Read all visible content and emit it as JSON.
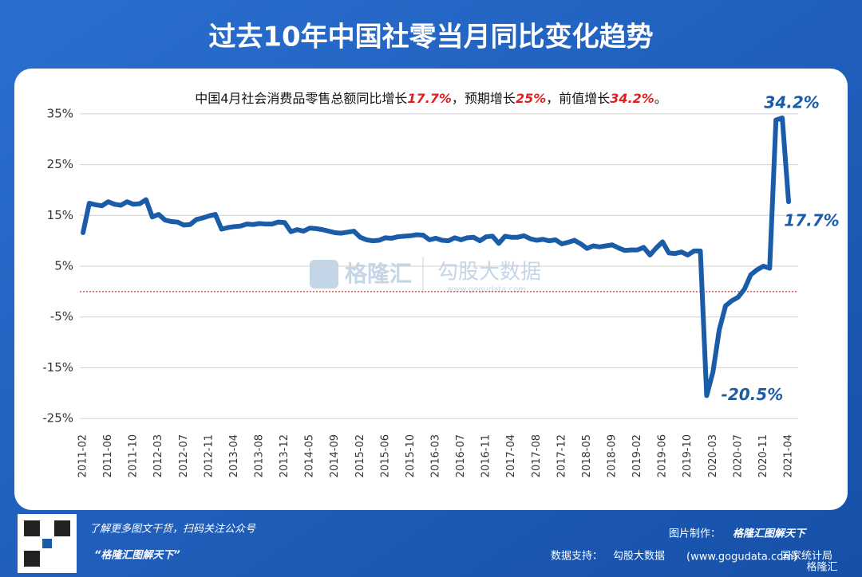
{
  "chart_data": {
    "type": "line",
    "title": "过去10年中国社零当月同比变化趋势",
    "subtitle_parts": [
      "中国4月社会消费品零售总额同比增长",
      "17.7%",
      "，预期增长",
      "25%",
      "，前值增长",
      "34.2%",
      "。"
    ],
    "categories": [
      "2011-02",
      null,
      null,
      null,
      "2011-06",
      null,
      null,
      null,
      "2011-10",
      null,
      null,
      null,
      "2012-03",
      null,
      null,
      null,
      "2012-07",
      null,
      null,
      null,
      "2012-11",
      null,
      null,
      null,
      "2013-04",
      null,
      null,
      null,
      "2013-08",
      null,
      null,
      null,
      "2013-12",
      null,
      null,
      null,
      "2014-05",
      null,
      null,
      null,
      "2014-09",
      null,
      null,
      null,
      "2015-02",
      null,
      null,
      null,
      "2015-06",
      null,
      null,
      null,
      "2015-10",
      null,
      null,
      null,
      "2016-03",
      null,
      null,
      null,
      "2016-07",
      null,
      null,
      null,
      "2016-11",
      null,
      null,
      null,
      "2017-04",
      null,
      null,
      null,
      "2017-08",
      null,
      null,
      null,
      "2017-12",
      null,
      null,
      null,
      "2018-05",
      null,
      null,
      null,
      "2018-09",
      null,
      null,
      null,
      "2019-02",
      null,
      null,
      null,
      "2019-06",
      null,
      null,
      null,
      "2019-10",
      null,
      null,
      null,
      "2020-03",
      null,
      null,
      null,
      "2020-07",
      null,
      null,
      null,
      "2020-11",
      null,
      null,
      null,
      "2021-04"
    ],
    "series": [
      {
        "color": "#1a5ca8",
        "values": [
          11.6,
          17.4,
          17.1,
          16.9,
          17.7,
          17.2,
          17.0,
          17.7,
          17.2,
          17.3,
          18.1,
          14.7,
          15.2,
          14.1,
          13.8,
          13.7,
          13.1,
          13.2,
          14.2,
          14.5,
          14.9,
          15.2,
          12.3,
          12.6,
          12.8,
          12.9,
          13.3,
          13.2,
          13.4,
          13.3,
          13.3,
          13.7,
          13.6,
          11.8,
          12.2,
          11.9,
          12.5,
          12.4,
          12.2,
          11.9,
          11.6,
          11.5,
          11.7,
          11.9,
          10.7,
          10.2,
          10.0,
          10.1,
          10.6,
          10.5,
          10.8,
          10.9,
          11.0,
          11.2,
          11.1,
          10.2,
          10.5,
          10.1,
          10.0,
          10.6,
          10.2,
          10.6,
          10.7,
          10.0,
          10.8,
          10.9,
          9.5,
          10.9,
          10.7,
          10.7,
          11.0,
          10.4,
          10.1,
          10.3,
          10.0,
          10.2,
          9.4,
          9.7,
          10.1,
          9.4,
          8.5,
          9.0,
          8.8,
          9.0,
          9.2,
          8.6,
          8.1,
          8.2,
          8.2,
          8.7,
          7.2,
          8.6,
          9.8,
          7.6,
          7.5,
          7.8,
          7.2,
          8.0,
          8.0,
          -20.5,
          -15.8,
          -7.5,
          -2.8,
          -1.8,
          -1.1,
          0.5,
          3.3,
          4.3,
          5.0,
          4.6,
          33.8,
          34.2,
          17.7
        ],
        "value_labels": [
          null,
          null,
          null,
          null,
          null,
          null,
          null,
          null,
          null,
          null,
          null,
          null,
          null,
          null,
          null,
          null,
          null,
          null,
          null,
          null,
          null,
          null,
          null,
          null,
          null,
          null,
          null,
          null,
          null,
          null,
          null,
          null,
          null,
          null,
          null,
          null,
          null,
          null,
          null,
          null,
          null,
          null,
          null,
          null,
          null,
          null,
          null,
          null,
          null,
          null,
          null,
          null,
          null,
          null,
          null,
          null,
          null,
          null,
          null,
          null,
          null,
          null,
          null,
          null,
          null,
          null,
          null,
          null,
          null,
          null,
          null,
          null,
          null,
          null,
          null,
          null,
          null,
          null,
          null,
          null,
          null,
          null,
          null,
          null,
          null,
          null,
          null,
          null,
          null,
          null,
          null,
          null,
          null,
          null,
          null,
          null,
          null,
          null,
          null,
          "-20.5%",
          null,
          null,
          null,
          null,
          null,
          null,
          null,
          null,
          null,
          null,
          null,
          "34.2%",
          "17.7%"
        ]
      }
    ],
    "ylim": [
      -27.5,
      37.5
    ],
    "yticks": [
      {
        "value": -25,
        "label": "-25%"
      },
      {
        "value": -15,
        "label": "-15%"
      },
      {
        "value": -5,
        "label": "-5%"
      },
      {
        "value": 5,
        "label": "5%"
      },
      {
        "value": 15,
        "label": "15%"
      },
      {
        "value": 25,
        "label": "25%"
      },
      {
        "value": 35,
        "label": "35%"
      }
    ],
    "grid": true,
    "zero_line": true,
    "watermark": [
      "格隆汇",
      "勾股大数据",
      "www.gogudata.com"
    ],
    "footer": {
      "qr_caption": "了解更多图文干货，扫码关注公众号",
      "account": "“格隆汇图解天下”",
      "made_by_label": "图片制作：",
      "made_by": "格隆汇图解天下",
      "source_label": "数据支持：",
      "source": "勾股大数据",
      "source_url": "(www.gogudata.com)",
      "source2": "国家统计局",
      "corner_logo": "格隆汇"
    }
  }
}
